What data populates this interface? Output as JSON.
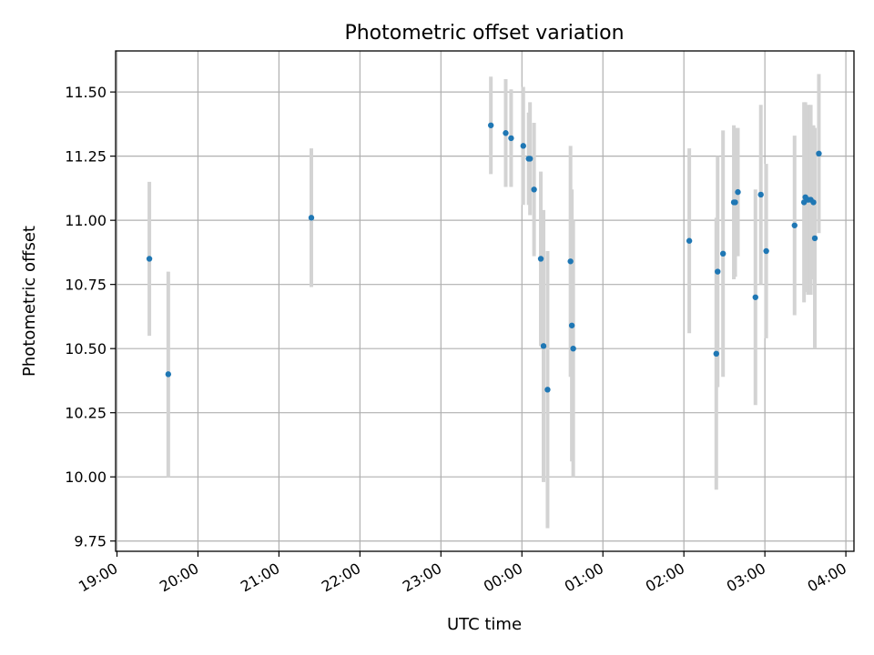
{
  "chart_data": {
    "type": "scatter",
    "title": "Photometric offset variation",
    "xlabel": "UTC time",
    "ylabel": "Photometric offset",
    "xlim": [
      "18:59",
      "04:06"
    ],
    "ylim": [
      9.71,
      11.66
    ],
    "grid": true,
    "marker_color": "#1f77b4",
    "errorbar_color": "#d3d3d3",
    "x_ticks": [
      "19:00",
      "20:00",
      "21:00",
      "22:00",
      "23:00",
      "00:00",
      "01:00",
      "02:00",
      "03:00",
      "04:00"
    ],
    "y_ticks": [
      "9.75",
      "10.00",
      "10.25",
      "10.50",
      "10.75",
      "11.00",
      "11.25",
      "11.50"
    ],
    "points": [
      {
        "t": "19:24",
        "y": 10.85,
        "err": 0.3
      },
      {
        "t": "19:38",
        "y": 10.4,
        "err": 0.4
      },
      {
        "t": "21:24",
        "y": 11.01,
        "err": 0.27
      },
      {
        "t": "23:37",
        "y": 11.37,
        "err": 0.19
      },
      {
        "t": "23:48",
        "y": 11.34,
        "err": 0.21
      },
      {
        "t": "23:52",
        "y": 11.32,
        "err": 0.19
      },
      {
        "t": "00:01",
        "y": 11.29,
        "err": 0.23
      },
      {
        "t": "00:05",
        "y": 11.24,
        "err": 0.18
      },
      {
        "t": "00:06",
        "y": 11.24,
        "err": 0.22
      },
      {
        "t": "00:09",
        "y": 11.12,
        "err": 0.26
      },
      {
        "t": "00:14",
        "y": 10.85,
        "err": 0.34
      },
      {
        "t": "00:16",
        "y": 10.51,
        "err": 0.53
      },
      {
        "t": "00:19",
        "y": 10.34,
        "err": 0.54
      },
      {
        "t": "00:36",
        "y": 10.84,
        "err": 0.45
      },
      {
        "t": "00:37",
        "y": 10.59,
        "err": 0.53
      },
      {
        "t": "00:38",
        "y": 10.5,
        "err": 0.5
      },
      {
        "t": "02:04",
        "y": 10.92,
        "err": 0.36
      },
      {
        "t": "02:24",
        "y": 10.48,
        "err": 0.53
      },
      {
        "t": "02:25",
        "y": 10.8,
        "err": 0.45
      },
      {
        "t": "02:29",
        "y": 10.87,
        "err": 0.48
      },
      {
        "t": "02:37",
        "y": 11.07,
        "err": 0.3
      },
      {
        "t": "02:38",
        "y": 11.07,
        "err": 0.29
      },
      {
        "t": "02:40",
        "y": 11.11,
        "err": 0.25
      },
      {
        "t": "02:53",
        "y": 10.7,
        "err": 0.42
      },
      {
        "t": "02:57",
        "y": 11.1,
        "err": 0.35
      },
      {
        "t": "03:01",
        "y": 10.88,
        "err": 0.34
      },
      {
        "t": "03:22",
        "y": 10.98,
        "err": 0.35
      },
      {
        "t": "03:29",
        "y": 11.07,
        "err": 0.39
      },
      {
        "t": "03:30",
        "y": 11.09,
        "err": 0.37
      },
      {
        "t": "03:32",
        "y": 11.08,
        "err": 0.37
      },
      {
        "t": "03:34",
        "y": 11.08,
        "err": 0.37
      },
      {
        "t": "03:36",
        "y": 11.07,
        "err": 0.3
      },
      {
        "t": "03:37",
        "y": 10.93,
        "err": 0.43
      },
      {
        "t": "03:40",
        "y": 11.26,
        "err": 0.31
      }
    ]
  }
}
